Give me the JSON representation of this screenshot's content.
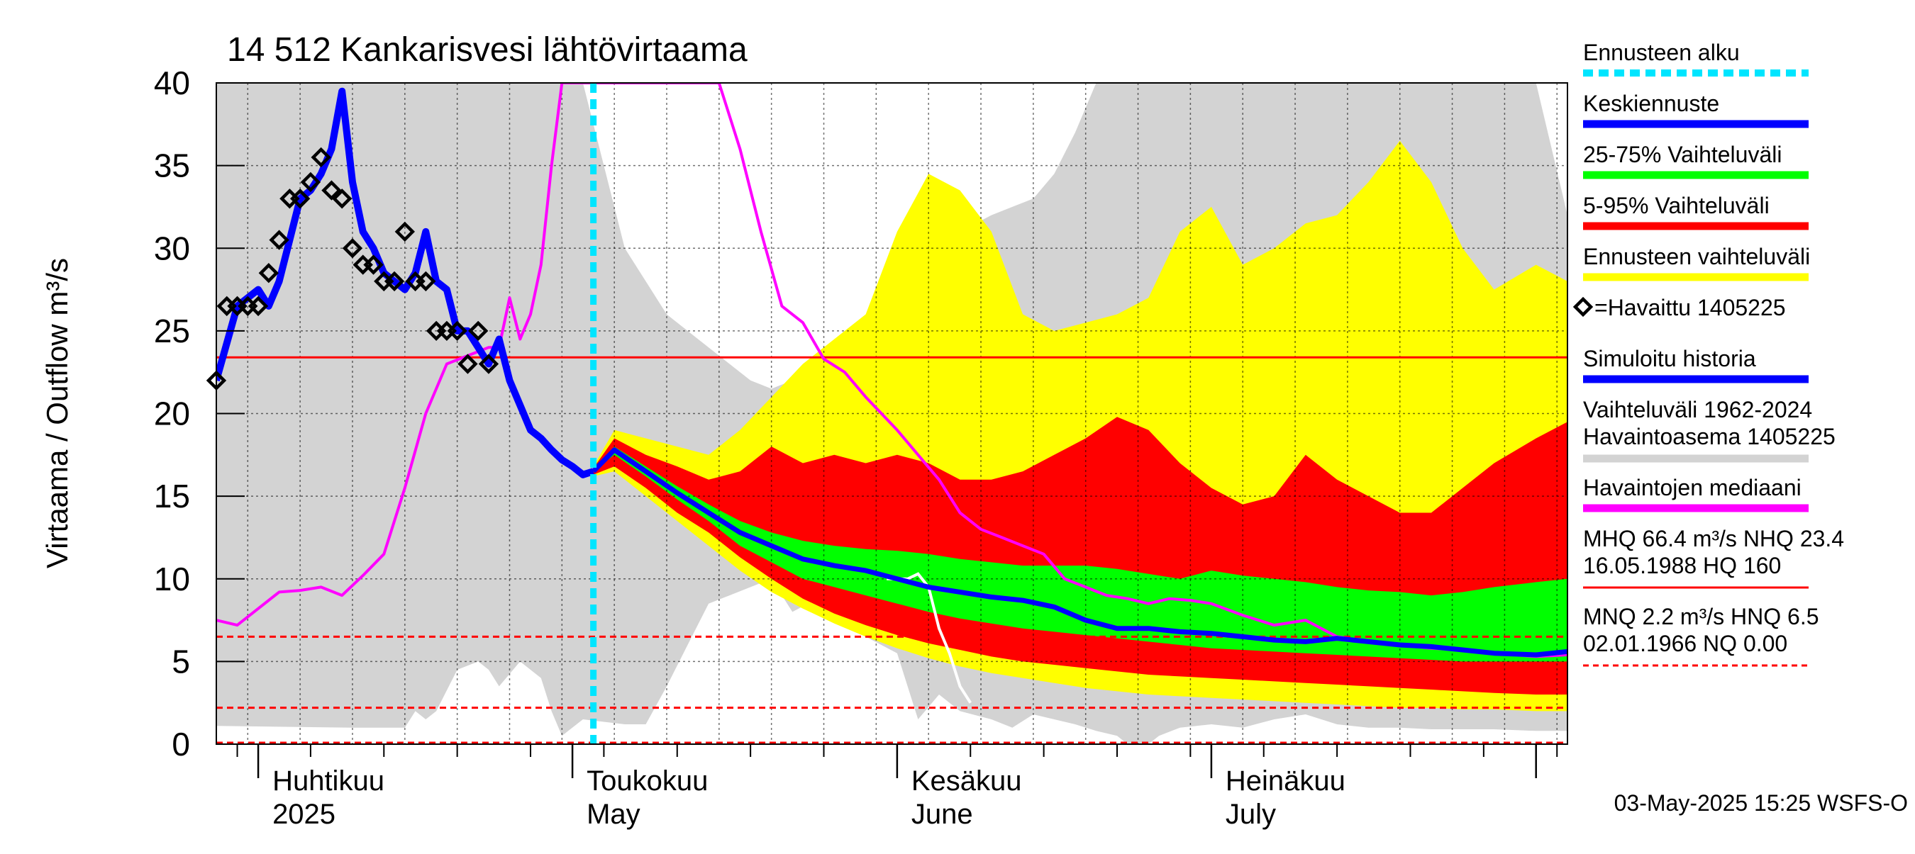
{
  "chart_data": {
    "type": "area",
    "title": "14 512 Kankarisvesi lähtövirtaama",
    "ylabel": "Virtaama / Outflow    m³/s",
    "ylim": [
      0,
      40
    ],
    "xlim": [
      "2025-03-28",
      "2025-08-04"
    ],
    "grid": true,
    "yticks": [
      "0",
      "5",
      "10",
      "15",
      "20",
      "25",
      "30",
      "35",
      "40"
    ],
    "month_labels": [
      {
        "fi": "Huhtikuu",
        "en": "2025",
        "date": "2025-04-01"
      },
      {
        "fi": "Toukokuu",
        "en": "May",
        "date": "2025-05-01"
      },
      {
        "fi": "Kesäkuu",
        "en": "June",
        "date": "2025-06-01"
      },
      {
        "fi": "Heinäkuu",
        "en": "July",
        "date": "2025-07-01"
      }
    ],
    "forecast_start": "2025-05-03",
    "reference_lines": {
      "NHQ": 23.4,
      "HNQ": 6.5,
      "MNQ": 2.2,
      "NQ": 0.0
    },
    "colors": {
      "history_band": "#d3d3d3",
      "forecast_band": "#ffff00",
      "band_5_95": "#ff0000",
      "band_25_75": "#00ff00",
      "mean_forecast": "#0000ff",
      "median": "#ff00ff",
      "reference": "#ff0000",
      "forecast_start": "#00e5ff",
      "simulated": "#0000ff",
      "observed": "#000000",
      "white_line": "#ffffff"
    },
    "series": [
      {
        "name": "Vaihteluväli 1962-2024 Havaintoasema 1405225",
        "kind": "band",
        "x": [
          "2025-03-28",
          "2025-04-10",
          "2025-04-15",
          "2025-04-16",
          "2025-04-17",
          "2025-04-18",
          "2025-04-20",
          "2025-04-22",
          "2025-04-23",
          "2025-04-24",
          "2025-04-26",
          "2025-04-28",
          "2025-04-29",
          "2025-04-30",
          "2025-05-02",
          "2025-05-06",
          "2025-05-08",
          "2025-05-10",
          "2025-05-12",
          "2025-05-14",
          "2025-05-16",
          "2025-05-18",
          "2025-05-20",
          "2025-05-22",
          "2025-05-25",
          "2025-05-27",
          "2025-05-29",
          "2025-06-01",
          "2025-06-03",
          "2025-06-05",
          "2025-06-07",
          "2025-06-10",
          "2025-06-12",
          "2025-06-14",
          "2025-06-16",
          "2025-06-18",
          "2025-06-20",
          "2025-06-22",
          "2025-06-24",
          "2025-06-26",
          "2025-06-28",
          "2025-07-01",
          "2025-07-04",
          "2025-07-07",
          "2025-07-10",
          "2025-07-13",
          "2025-07-16",
          "2025-07-19",
          "2025-07-22",
          "2025-07-25",
          "2025-07-28",
          "2025-08-01",
          "2025-08-04"
        ],
        "lower": [
          1.1,
          1.0,
          1.0,
          2.0,
          1.5,
          2.0,
          4.5,
          5.0,
          4.5,
          3.5,
          5.0,
          4.0,
          2.0,
          0.5,
          1.5,
          1.2,
          1.2,
          3.5,
          6.0,
          8.5,
          9.0,
          9.5,
          10.0,
          8.0,
          9.0,
          7.5,
          6.5,
          5.5,
          1.5,
          3.0,
          2.0,
          1.5,
          1.0,
          1.8,
          1.5,
          1.2,
          0.8,
          0.5,
          -0.5,
          0.5,
          1.0,
          1.2,
          1.0,
          1.5,
          1.8,
          1.2,
          1.0,
          1.0,
          0.9,
          0.9,
          0.9,
          0.8,
          0.8
        ],
        "upper": [
          40,
          40,
          40,
          40,
          40,
          40,
          40,
          40,
          40,
          40,
          40,
          40,
          40,
          40,
          40,
          30,
          28,
          26,
          25,
          24,
          23,
          22,
          21.5,
          22,
          23,
          24,
          24.5,
          28,
          28.5,
          29.5,
          31,
          32,
          32.5,
          33,
          34.5,
          37,
          40,
          40,
          40,
          40,
          40,
          40,
          40,
          40,
          40,
          40,
          40,
          40,
          40,
          40,
          40,
          40,
          32.0
        ]
      },
      {
        "name": "Ennusteen vaihteluväli",
        "kind": "band",
        "x": [
          "2025-05-03",
          "2025-05-05",
          "2025-05-08",
          "2025-05-11",
          "2025-05-14",
          "2025-05-17",
          "2025-05-20",
          "2025-05-23",
          "2025-05-26",
          "2025-05-29",
          "2025-06-01",
          "2025-06-04",
          "2025-06-07",
          "2025-06-10",
          "2025-06-13",
          "2025-06-16",
          "2025-06-19",
          "2025-06-22",
          "2025-06-25",
          "2025-06-28",
          "2025-07-01",
          "2025-07-04",
          "2025-07-07",
          "2025-07-10",
          "2025-07-13",
          "2025-07-16",
          "2025-07-19",
          "2025-07-22",
          "2025-07-25",
          "2025-07-28",
          "2025-08-01",
          "2025-08-04"
        ],
        "lower": [
          16.2,
          16.5,
          15.0,
          13.5,
          12.0,
          10.5,
          9.2,
          8.2,
          7.3,
          6.5,
          5.8,
          5.2,
          4.7,
          4.3,
          4.0,
          3.7,
          3.4,
          3.2,
          3.0,
          2.9,
          2.8,
          2.7,
          2.6,
          2.5,
          2.4,
          2.3,
          2.2,
          2.2,
          2.1,
          2.1,
          2.0,
          2.0
        ],
        "upper": [
          16.8,
          19.0,
          18.5,
          18.0,
          17.5,
          19.0,
          21.0,
          23.0,
          24.5,
          26.0,
          31.0,
          34.5,
          33.5,
          31.0,
          26.0,
          25.0,
          25.5,
          26.0,
          27.0,
          31.0,
          32.5,
          29.0,
          30.0,
          31.5,
          32.0,
          34.0,
          36.5,
          34.0,
          30.0,
          27.5,
          29.0,
          28.0
        ]
      },
      {
        "name": "5-95% Vaihteluväli",
        "kind": "band",
        "x": [
          "2025-05-03",
          "2025-05-05",
          "2025-05-08",
          "2025-05-11",
          "2025-05-14",
          "2025-05-17",
          "2025-05-20",
          "2025-05-23",
          "2025-05-26",
          "2025-05-29",
          "2025-06-01",
          "2025-06-04",
          "2025-06-07",
          "2025-06-10",
          "2025-06-13",
          "2025-06-16",
          "2025-06-19",
          "2025-06-22",
          "2025-06-25",
          "2025-06-28",
          "2025-07-01",
          "2025-07-04",
          "2025-07-07",
          "2025-07-10",
          "2025-07-13",
          "2025-07-16",
          "2025-07-19",
          "2025-07-22",
          "2025-07-25",
          "2025-07-28",
          "2025-08-01",
          "2025-08-04"
        ],
        "lower": [
          16.3,
          16.8,
          15.5,
          14.0,
          12.8,
          11.3,
          10.0,
          8.8,
          7.9,
          7.2,
          6.6,
          6.1,
          5.7,
          5.3,
          5.0,
          4.8,
          4.6,
          4.4,
          4.2,
          4.1,
          4.0,
          3.9,
          3.8,
          3.7,
          3.6,
          3.5,
          3.4,
          3.3,
          3.2,
          3.1,
          3.0,
          3.0
        ],
        "upper": [
          16.7,
          18.5,
          17.5,
          16.8,
          16.0,
          16.5,
          18.0,
          17.0,
          17.5,
          17.0,
          17.5,
          17.0,
          16.0,
          16.0,
          16.5,
          17.5,
          18.5,
          19.8,
          19.0,
          17.0,
          15.5,
          14.5,
          15.0,
          17.5,
          16.0,
          15.0,
          14.0,
          14.0,
          15.5,
          17.0,
          18.5,
          19.5
        ]
      },
      {
        "name": "25-75% Vaihteluväli",
        "kind": "band",
        "x": [
          "2025-05-03",
          "2025-05-05",
          "2025-05-08",
          "2025-05-11",
          "2025-05-14",
          "2025-05-17",
          "2025-05-20",
          "2025-05-23",
          "2025-05-26",
          "2025-05-29",
          "2025-06-01",
          "2025-06-04",
          "2025-06-07",
          "2025-06-10",
          "2025-06-13",
          "2025-06-16",
          "2025-06-19",
          "2025-06-22",
          "2025-06-25",
          "2025-06-28",
          "2025-07-01",
          "2025-07-04",
          "2025-07-07",
          "2025-07-10",
          "2025-07-13",
          "2025-07-16",
          "2025-07-19",
          "2025-07-22",
          "2025-07-25",
          "2025-07-28",
          "2025-08-01",
          "2025-08-04"
        ],
        "lower": [
          16.5,
          17.5,
          16.2,
          14.8,
          13.5,
          12.0,
          11.0,
          10.0,
          9.5,
          9.0,
          8.5,
          8.0,
          7.6,
          7.3,
          7.0,
          6.8,
          6.6,
          6.4,
          6.2,
          6.0,
          5.8,
          5.7,
          5.6,
          5.5,
          5.4,
          5.3,
          5.2,
          5.1,
          5.0,
          5.0,
          5.0,
          5.0
        ],
        "upper": [
          16.6,
          18.0,
          16.8,
          15.6,
          14.5,
          13.5,
          12.8,
          12.3,
          12.0,
          11.8,
          11.7,
          11.5,
          11.2,
          11.0,
          10.8,
          10.8,
          10.8,
          10.6,
          10.3,
          10.0,
          10.5,
          10.2,
          10.0,
          9.8,
          9.5,
          9.3,
          9.2,
          9.0,
          9.2,
          9.5,
          9.8,
          10.0
        ]
      },
      {
        "name": "Keskiennuste",
        "kind": "line",
        "x": [
          "2025-05-03",
          "2025-05-05",
          "2025-05-08",
          "2025-05-11",
          "2025-05-14",
          "2025-05-17",
          "2025-05-20",
          "2025-05-23",
          "2025-05-26",
          "2025-05-29",
          "2025-06-01",
          "2025-06-04",
          "2025-06-07",
          "2025-06-10",
          "2025-06-13",
          "2025-06-16",
          "2025-06-19",
          "2025-06-22",
          "2025-06-25",
          "2025-06-28",
          "2025-07-01",
          "2025-07-04",
          "2025-07-07",
          "2025-07-10",
          "2025-07-13",
          "2025-07-16",
          "2025-07-19",
          "2025-07-22",
          "2025-07-25",
          "2025-07-28",
          "2025-08-01",
          "2025-08-04"
        ],
        "y": [
          16.5,
          17.8,
          16.5,
          15.2,
          14.0,
          12.8,
          12.0,
          11.2,
          10.8,
          10.5,
          10.0,
          9.5,
          9.2,
          8.9,
          8.7,
          8.3,
          7.5,
          7.0,
          7.0,
          6.8,
          6.7,
          6.5,
          6.3,
          6.2,
          6.4,
          6.2,
          6.0,
          5.9,
          5.7,
          5.5,
          5.4,
          5.6
        ]
      },
      {
        "name": "Havaintojen mediaani",
        "kind": "line",
        "x": [
          "2025-03-28",
          "2025-03-30",
          "2025-04-01",
          "2025-04-03",
          "2025-04-05",
          "2025-04-07",
          "2025-04-09",
          "2025-04-11",
          "2025-04-13",
          "2025-04-15",
          "2025-04-17",
          "2025-04-19",
          "2025-04-21",
          "2025-04-23",
          "2025-04-24",
          "2025-04-25",
          "2025-04-26",
          "2025-04-27",
          "2025-04-28",
          "2025-04-29",
          "2025-04-30",
          "2025-05-01",
          "2025-05-15",
          "2025-05-17",
          "2025-05-19",
          "2025-05-21",
          "2025-05-23",
          "2025-05-25",
          "2025-05-27",
          "2025-05-29",
          "2025-06-01",
          "2025-06-03",
          "2025-06-05",
          "2025-06-07",
          "2025-06-09",
          "2025-06-11",
          "2025-06-13",
          "2025-06-15",
          "2025-06-17",
          "2025-06-19",
          "2025-06-21",
          "2025-06-23",
          "2025-06-25",
          "2025-06-27",
          "2025-06-29",
          "2025-07-01",
          "2025-07-04",
          "2025-07-07",
          "2025-07-10",
          "2025-07-13",
          "2025-07-16",
          "2025-07-19",
          "2025-07-22",
          "2025-07-25",
          "2025-07-28",
          "2025-08-01",
          "2025-08-04"
        ],
        "y": [
          7.5,
          7.2,
          8.2,
          9.2,
          9.3,
          9.5,
          9.0,
          10.2,
          11.5,
          15.5,
          20.0,
          23.0,
          23.5,
          24.0,
          24.0,
          27.0,
          24.5,
          26.0,
          29.0,
          35.0,
          40.0,
          40.0,
          40.0,
          36.0,
          31.0,
          26.5,
          25.5,
          23.3,
          22.5,
          21.0,
          19.0,
          17.5,
          16.0,
          14.0,
          13.0,
          12.5,
          12.0,
          11.5,
          10.0,
          9.5,
          9.0,
          8.8,
          8.5,
          8.8,
          8.7,
          8.5,
          7.8,
          7.2,
          7.5,
          6.5,
          6.2,
          6.0,
          5.8,
          5.7,
          5.5,
          5.3,
          5.4
        ]
      },
      {
        "name": "Simuloitu historia",
        "kind": "line",
        "x": [
          "2025-03-28",
          "2025-03-30",
          "2025-04-01",
          "2025-04-02",
          "2025-04-03",
          "2025-04-04",
          "2025-04-05",
          "2025-04-06",
          "2025-04-07",
          "2025-04-08",
          "2025-04-09",
          "2025-04-10",
          "2025-04-11",
          "2025-04-12",
          "2025-04-13",
          "2025-04-14",
          "2025-04-15",
          "2025-04-16",
          "2025-04-17",
          "2025-04-18",
          "2025-04-19",
          "2025-04-20",
          "2025-04-21",
          "2025-04-22",
          "2025-04-23",
          "2025-04-24",
          "2025-04-25",
          "2025-04-26",
          "2025-04-27",
          "2025-04-28",
          "2025-04-29",
          "2025-04-30",
          "2025-05-01",
          "2025-05-02",
          "2025-05-03"
        ],
        "y": [
          22.0,
          26.5,
          27.5,
          26.5,
          28.0,
          30.5,
          33.0,
          33.5,
          34.5,
          36.0,
          39.5,
          34.0,
          31.0,
          30.0,
          28.5,
          28.0,
          27.5,
          28.5,
          31.0,
          28.0,
          27.5,
          25.0,
          25.0,
          24.0,
          23.0,
          24.5,
          22.0,
          20.5,
          19.0,
          18.5,
          17.8,
          17.2,
          16.8,
          16.3,
          16.5
        ]
      },
      {
        "name": "Havaittu 1405225",
        "kind": "scatter",
        "x": [
          "2025-03-28",
          "2025-03-29",
          "2025-03-30",
          "2025-03-31",
          "2025-04-01",
          "2025-04-02",
          "2025-04-03",
          "2025-04-04",
          "2025-04-05",
          "2025-04-06",
          "2025-04-07",
          "2025-04-08",
          "2025-04-09",
          "2025-04-10",
          "2025-04-11",
          "2025-04-12",
          "2025-04-13",
          "2025-04-14",
          "2025-04-15",
          "2025-04-16",
          "2025-04-17",
          "2025-04-18",
          "2025-04-19",
          "2025-04-20",
          "2025-04-21",
          "2025-04-22",
          "2025-04-23"
        ],
        "y": [
          22.0,
          26.5,
          26.5,
          26.5,
          26.5,
          28.5,
          30.5,
          33.0,
          33.0,
          34.0,
          35.5,
          33.5,
          33.0,
          30.0,
          29.0,
          29.0,
          28.0,
          28.0,
          31.0,
          28.0,
          28.0,
          25.0,
          25.0,
          25.0,
          23.0,
          25.0,
          23.0
        ]
      },
      {
        "name": "",
        "kind": "line",
        "x": [
          "2025-05-31",
          "2025-06-02",
          "2025-06-03",
          "2025-06-04",
          "2025-06-05",
          "2025-06-06",
          "2025-06-07",
          "2025-06-08"
        ],
        "y": [
          10.0,
          10.0,
          10.3,
          9.5,
          7.0,
          5.5,
          3.5,
          2.5
        ]
      }
    ],
    "legend": [
      {
        "label": "Ennusteen alku",
        "style": "dashed",
        "color": "#00e5ff"
      },
      {
        "label": "Keskiennuste",
        "style": "line",
        "color": "#0000ff"
      },
      {
        "label": "25-75% Vaihteluväli",
        "style": "line",
        "color": "#00ff00"
      },
      {
        "label": "5-95% Vaihteluväli",
        "style": "line",
        "color": "#ff0000"
      },
      {
        "label": "Ennusteen vaihteluväli",
        "style": "line",
        "color": "#ffff00"
      },
      {
        "label": "=Havaittu 1405225",
        "style": "marker",
        "color": "#000000"
      },
      {
        "label": "Simuloitu historia",
        "style": "line",
        "color": "#0000ff"
      },
      {
        "label": "Vaihteluväli 1962-2024",
        "label2": " Havaintoasema 1405225",
        "style": "line",
        "color": "#d3d3d3"
      },
      {
        "label": "Havaintojen mediaani",
        "style": "line",
        "color": "#ff00ff"
      },
      {
        "label": "MHQ 66.4 m³/s NHQ 23.4",
        "label2": "16.05.1988 HQ  160",
        "style": "line",
        "color": "#ff0000"
      },
      {
        "label": "MNQ  2.2 m³/s HNQ  6.5",
        "label2": "02.01.1966 NQ 0.00",
        "style": "dashed",
        "color": "#ff0000"
      }
    ],
    "footer": "03-May-2025 15:25 WSFS-O"
  }
}
